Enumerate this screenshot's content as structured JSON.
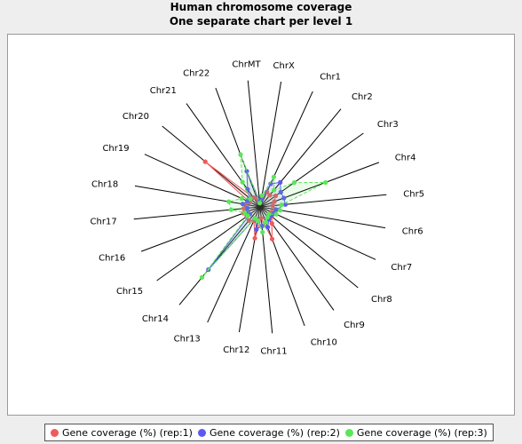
{
  "chart_data": {
    "type": "radar",
    "title": "Human chromosome coverage",
    "subtitle": "One separate chart per level 1",
    "categories": [
      "ChrMT",
      "ChrX",
      "Chr1",
      "Chr2",
      "Chr3",
      "Chr4",
      "Chr5",
      "Chr6",
      "Chr7",
      "Chr8",
      "Chr9",
      "Chr10",
      "Chr11",
      "Chr12",
      "Chr13",
      "Chr14",
      "Chr15",
      "Chr16",
      "Chr17",
      "Chr18",
      "Chr19",
      "Chr20",
      "Chr21",
      "Chr22"
    ],
    "rmax": 100,
    "grid": false,
    "legend_position": "bottom",
    "series": [
      {
        "name": "Gene coverage (%) (rep:1)",
        "color": "#f05a5a",
        "values": [
          3,
          8,
          13,
          12,
          15,
          12,
          10,
          12,
          10,
          12,
          16,
          27,
          9,
          25,
          12,
          14,
          13,
          14,
          13,
          12,
          9,
          56,
          9,
          7
        ]
      },
      {
        "name": "Gene coverage (%) (rep:2)",
        "color": "#5a5af0",
        "values": [
          5,
          6,
          20,
          25,
          20,
          20,
          20,
          13,
          12,
          11,
          12,
          17,
          15,
          18,
          10,
          64,
          10,
          12,
          10,
          14,
          11,
          11,
          17,
          30
        ]
      },
      {
        "name": "Gene coverage (%) (rep:3)",
        "color": "#5ae65a",
        "values": [
          3,
          9,
          26,
          17,
          33,
          55,
          17,
          16,
          14,
          9,
          10,
          13,
          20,
          11,
          10,
          72,
          12,
          13,
          23,
          25,
          16,
          10,
          24,
          44
        ]
      }
    ]
  }
}
